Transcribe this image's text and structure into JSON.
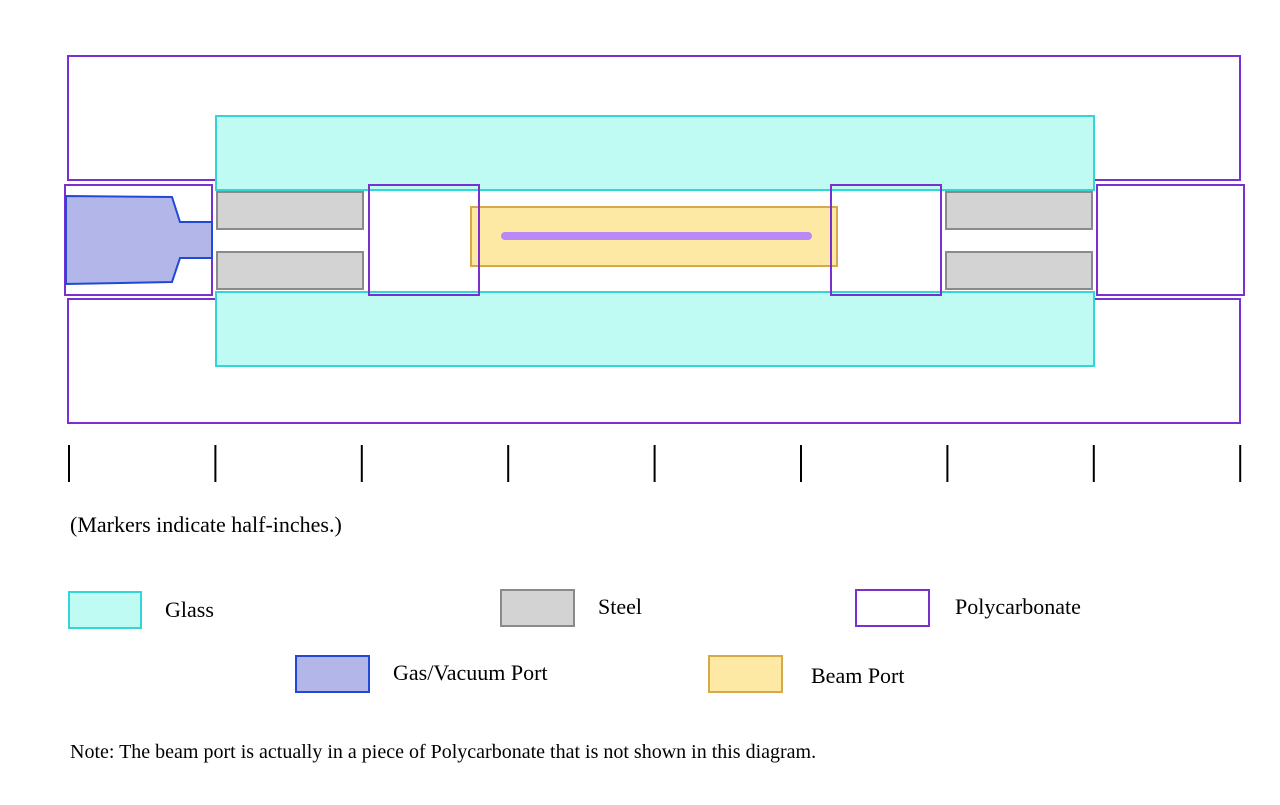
{
  "colors": {
    "glass_fill": "#c0fbf3",
    "glass_stroke": "#33d6d6",
    "steel_fill": "#d3d3d3",
    "steel_stroke": "#8a8a8a",
    "polycarbonate_stroke": "#7a2fd0",
    "gas_fill": "#b3b6e8",
    "gas_stroke": "#2149d6",
    "beam_fill": "#fde9a4",
    "beam_stroke": "#d6a94a",
    "beam_line": "#b98af5"
  },
  "scale": {
    "marker_unit": "half-inch",
    "marker_count": 9
  },
  "caption": {
    "markers_note": "(Markers indicate half-inches.)"
  },
  "legend": {
    "items": [
      {
        "key": "glass",
        "label": "Glass"
      },
      {
        "key": "steel",
        "label": "Steel"
      },
      {
        "key": "polycarbonate",
        "label": "Polycarbonate"
      },
      {
        "key": "gas",
        "label": "Gas/Vacuum Port"
      },
      {
        "key": "beam",
        "label": "Beam Port"
      }
    ]
  },
  "footer": {
    "note": "Note: The beam port is actually in a piece of Polycarbonate that is not shown in this diagram."
  }
}
